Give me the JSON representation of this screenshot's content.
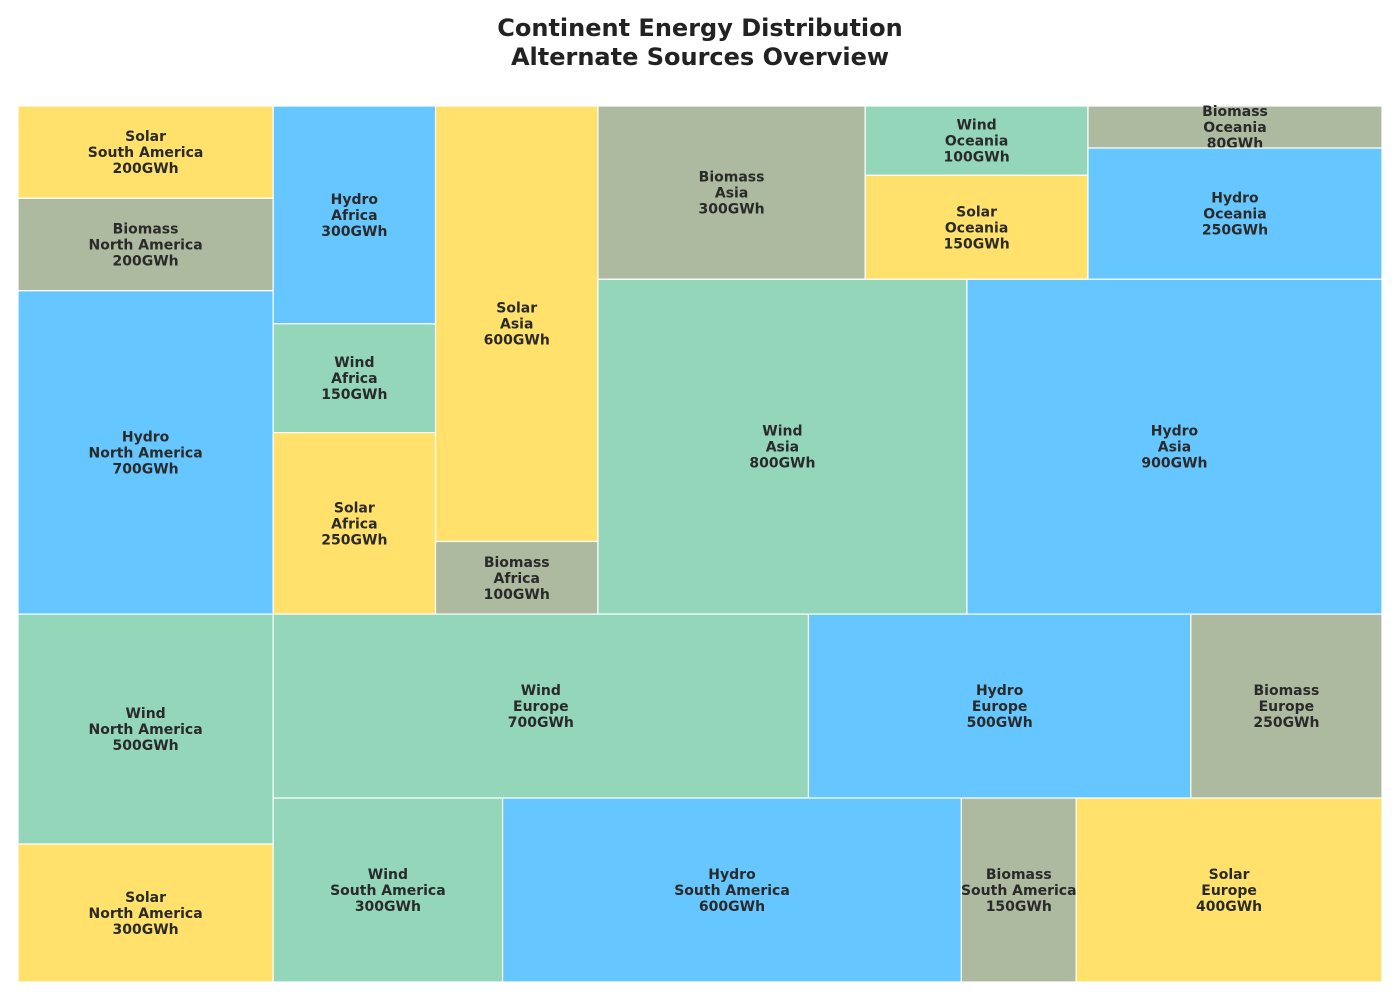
{
  "chart_data": {
    "type": "treemap",
    "title": "Continent Energy Distribution",
    "subtitle": "Alternate Sources Overview",
    "unit": "GWh",
    "colors": {
      "Solar": "#ffe16b",
      "Hydro": "#66c6ff",
      "Wind": "#94d6ba",
      "Biomass": "#adbaa0"
    },
    "items": [
      {
        "source": "Solar",
        "continent": "South America",
        "value": 200
      },
      {
        "source": "Biomass",
        "continent": "North America",
        "value": 200
      },
      {
        "source": "Hydro",
        "continent": "North America",
        "value": 700
      },
      {
        "source": "Wind",
        "continent": "North America",
        "value": 500
      },
      {
        "source": "Solar",
        "continent": "North America",
        "value": 300
      },
      {
        "source": "Hydro",
        "continent": "Africa",
        "value": 300
      },
      {
        "source": "Wind",
        "continent": "Africa",
        "value": 150
      },
      {
        "source": "Solar",
        "continent": "Africa",
        "value": 250
      },
      {
        "source": "Solar",
        "continent": "Asia",
        "value": 600
      },
      {
        "source": "Biomass",
        "continent": "Africa",
        "value": 100
      },
      {
        "source": "Biomass",
        "continent": "Asia",
        "value": 300
      },
      {
        "source": "Wind",
        "continent": "Oceania",
        "value": 100
      },
      {
        "source": "Solar",
        "continent": "Oceania",
        "value": 150
      },
      {
        "source": "Biomass",
        "continent": "Oceania",
        "value": 80
      },
      {
        "source": "Hydro",
        "continent": "Oceania",
        "value": 250
      },
      {
        "source": "Wind",
        "continent": "Asia",
        "value": 800
      },
      {
        "source": "Hydro",
        "continent": "Asia",
        "value": 900
      },
      {
        "source": "Wind",
        "continent": "Europe",
        "value": 700
      },
      {
        "source": "Hydro",
        "continent": "Europe",
        "value": 500
      },
      {
        "source": "Biomass",
        "continent": "Europe",
        "value": 250
      },
      {
        "source": "Wind",
        "continent": "South America",
        "value": 300
      },
      {
        "source": "Hydro",
        "continent": "South America",
        "value": 600
      },
      {
        "source": "Biomass",
        "continent": "South America",
        "value": 150
      },
      {
        "source": "Solar",
        "continent": "Europe",
        "value": 400
      }
    ]
  }
}
